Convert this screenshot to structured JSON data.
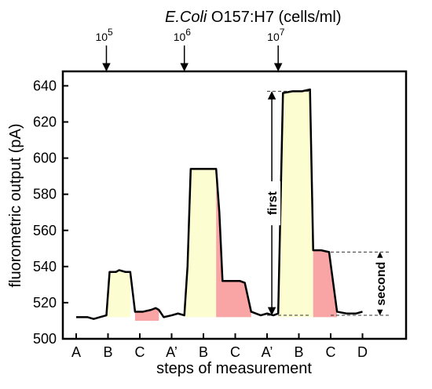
{
  "chart_data": {
    "type": "line",
    "top_axis": {
      "title_italic": "E.Coli",
      "title_rest": " O157:H7 (cells/ml)",
      "markers": [
        {
          "base": "10",
          "exp": "5"
        },
        {
          "base": "10",
          "exp": "6"
        },
        {
          "base": "10",
          "exp": "7"
        }
      ]
    },
    "xlabel": "steps of measurement",
    "ylabel": "fluorometric output (pA)",
    "ylim": [
      500,
      648
    ],
    "yticks": [
      500,
      520,
      540,
      560,
      580,
      600,
      620,
      640
    ],
    "categories": [
      "A",
      "B",
      "C",
      "A’",
      "B",
      "C",
      "A’",
      "B",
      "C",
      "D"
    ],
    "trace": [
      [
        0.0,
        512
      ],
      [
        0.35,
        512
      ],
      [
        0.55,
        511
      ],
      [
        0.75,
        512
      ],
      [
        0.95,
        513
      ],
      [
        1.05,
        537
      ],
      [
        1.25,
        537
      ],
      [
        1.35,
        538
      ],
      [
        1.55,
        537
      ],
      [
        1.7,
        537
      ],
      [
        1.85,
        515
      ],
      [
        2.1,
        515
      ],
      [
        2.35,
        516
      ],
      [
        2.5,
        517
      ],
      [
        2.6,
        516
      ],
      [
        2.75,
        512
      ],
      [
        3.0,
        513
      ],
      [
        3.2,
        514
      ],
      [
        3.4,
        513
      ],
      [
        3.5,
        540
      ],
      [
        3.6,
        594
      ],
      [
        3.85,
        594
      ],
      [
        4.1,
        594
      ],
      [
        4.4,
        594
      ],
      [
        4.5,
        570
      ],
      [
        4.6,
        532
      ],
      [
        4.9,
        532
      ],
      [
        5.15,
        532
      ],
      [
        5.3,
        531
      ],
      [
        5.5,
        515
      ],
      [
        5.8,
        513
      ],
      [
        6.0,
        514
      ],
      [
        6.2,
        513
      ],
      [
        6.35,
        514
      ],
      [
        6.5,
        636
      ],
      [
        6.8,
        637
      ],
      [
        7.1,
        637
      ],
      [
        7.35,
        638
      ],
      [
        7.45,
        549
      ],
      [
        7.7,
        549
      ],
      [
        7.95,
        548
      ],
      [
        8.2,
        515
      ],
      [
        8.5,
        514
      ],
      [
        8.8,
        514
      ],
      [
        9.0,
        515
      ]
    ],
    "fills": [
      {
        "kind": "B",
        "color": "#fdfdd2",
        "from": 0.95,
        "to": 1.7
      },
      {
        "kind": "C",
        "color": "#f9a5a5",
        "from": 1.85,
        "to": 2.6,
        "floor": 510
      },
      {
        "kind": "B",
        "color": "#fdfdd2",
        "from": 3.4,
        "to": 4.4
      },
      {
        "kind": "C",
        "color": "#f9a5a5",
        "from": 4.4,
        "to": 5.5
      },
      {
        "kind": "B",
        "color": "#fdfdd2",
        "from": 6.35,
        "to": 7.45
      },
      {
        "kind": "C",
        "color": "#f9a5a5",
        "from": 7.45,
        "to": 8.2
      }
    ],
    "marker_x": [
      0.95,
      3.4,
      6.35
    ],
    "brackets": [
      {
        "label": "first",
        "x": 6.15,
        "y_from": 513,
        "y_to": 637,
        "ref_x_from": 6.0,
        "ref_x_to": 7.35
      },
      {
        "label": "second",
        "x": 9.55,
        "y_from": 513,
        "y_to": 548,
        "ref_x_from": 8.0,
        "ref_x_to": 9.9
      }
    ],
    "grid": false,
    "legend": "none"
  }
}
